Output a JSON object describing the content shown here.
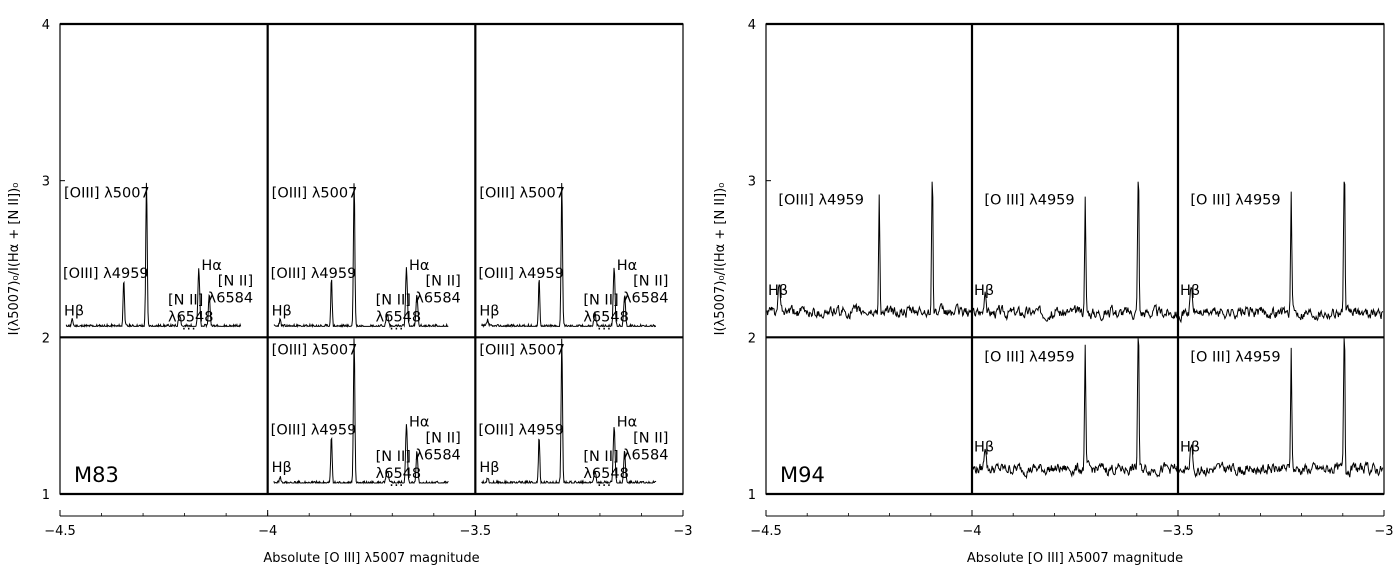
{
  "chart_data": {
    "type": "line",
    "description_of_panels": "grid of spectra cells plotted in a ratio vs magnitude diagram",
    "charts": [
      {
        "id": "M83",
        "galaxy_label": "M83",
        "xlabel": "Absolute [O III] λ5007 magnitude",
        "ylabel": "I(λ5007)₀/I(Hα + [N II])₀",
        "xlim": [
          -4.5,
          -3
        ],
        "ylim": [
          1,
          4
        ],
        "x_ticks": [
          -4.5,
          -4,
          -3.5,
          -3
        ],
        "x_tick_labels": [
          "−4.5",
          "−4",
          "−3.5",
          "−3"
        ],
        "y_ticks": [
          1,
          2,
          3,
          4
        ],
        "y_tick_labels": [
          "1",
          "2",
          "3",
          "4"
        ],
        "grid_x": [
          -4,
          -3.5
        ],
        "grid_y": [
          2
        ],
        "cells": [
          {
            "xi": 0,
            "yi": 1,
            "type": "red",
            "seed": 11,
            "labels": {
              "o3_5007": "[OIII] λ5007",
              "o3_4959": "[OIII] λ4959",
              "hbeta": "Hβ",
              "n2_6548": "[N II]\nλ6548",
              "halpha": "Hα",
              "n2_6584": "[N II]\nλ6584",
              "dots": "…"
            }
          },
          {
            "xi": 1,
            "yi": 1,
            "type": "red",
            "seed": 23,
            "labels": {
              "o3_5007": "[OIII] λ5007",
              "o3_4959": "[OIII] λ4959",
              "hbeta": "Hβ",
              "n2_6548": "[N II]\nλ6548",
              "halpha": "Hα",
              "n2_6584": "[N II]\nλ6584",
              "dots": "…"
            }
          },
          {
            "xi": 2,
            "yi": 1,
            "type": "red",
            "seed": 37,
            "labels": {
              "o3_5007": "[OIII] λ5007",
              "o3_4959": "[OIII] λ4959",
              "hbeta": "Hβ",
              "n2_6548": "[N II]\nλ6548",
              "halpha": "Hα",
              "n2_6584": "[N II]\nλ6584",
              "dots": "…"
            }
          },
          {
            "xi": 1,
            "yi": 0,
            "type": "red",
            "seed": 41,
            "labels": {
              "o3_5007": "[OIII] λ5007",
              "o3_4959": "[OIII] λ4959",
              "hbeta": "Hβ",
              "n2_6548": "[N II]\nλ6548",
              "halpha": "Hα",
              "n2_6584": "[N II]\nλ6584",
              "dots": "…"
            }
          },
          {
            "xi": 2,
            "yi": 0,
            "type": "red",
            "seed": 53,
            "labels": {
              "o3_5007": "[OIII] λ5007",
              "o3_4959": "[OIII] λ4959",
              "hbeta": "Hβ",
              "n2_6548": "[N II]\nλ6548",
              "halpha": "Hα",
              "n2_6584": "[N II]\nλ6584",
              "dots": "…"
            }
          }
        ]
      },
      {
        "id": "M94",
        "galaxy_label": "M94",
        "xlabel": "Absolute [O III] λ5007 magnitude",
        "ylabel": "I(λ5007)₀/I(Hα + [N II])₀",
        "xlim": [
          -4.5,
          -3
        ],
        "ylim": [
          1,
          4
        ],
        "x_ticks": [
          -4.5,
          -4,
          -3.5,
          -3
        ],
        "x_tick_labels": [
          "−4.5",
          "−4",
          "−3.5",
          "−3"
        ],
        "y_ticks": [
          1,
          2,
          3,
          4
        ],
        "y_tick_labels": [
          "1",
          "2",
          "3",
          "4"
        ],
        "grid_x": [
          -4,
          -3.5
        ],
        "grid_y": [
          2
        ],
        "cells": [
          {
            "xi": 0,
            "yi": 1,
            "type": "blue",
            "seed": 61,
            "labels": {
              "o3_4959": "[OIII] λ4959",
              "hbeta": "Hβ"
            }
          },
          {
            "xi": 1,
            "yi": 1,
            "type": "blue",
            "seed": 67,
            "labels": {
              "o3_4959": "[O III] λ4959",
              "hbeta": "Hβ"
            }
          },
          {
            "xi": 2,
            "yi": 1,
            "type": "blue",
            "seed": 71,
            "labels": {
              "o3_4959": "[O III] λ4959",
              "hbeta": "Hβ"
            }
          },
          {
            "xi": 1,
            "yi": 0,
            "type": "blue",
            "seed": 79,
            "labels": {
              "o3_4959": "[O III] λ4959",
              "hbeta": "Hβ"
            }
          },
          {
            "xi": 2,
            "yi": 0,
            "type": "blue",
            "seed": 83,
            "labels": {
              "o3_4959": "[O III] λ4959",
              "hbeta": "Hβ"
            }
          }
        ]
      }
    ]
  }
}
